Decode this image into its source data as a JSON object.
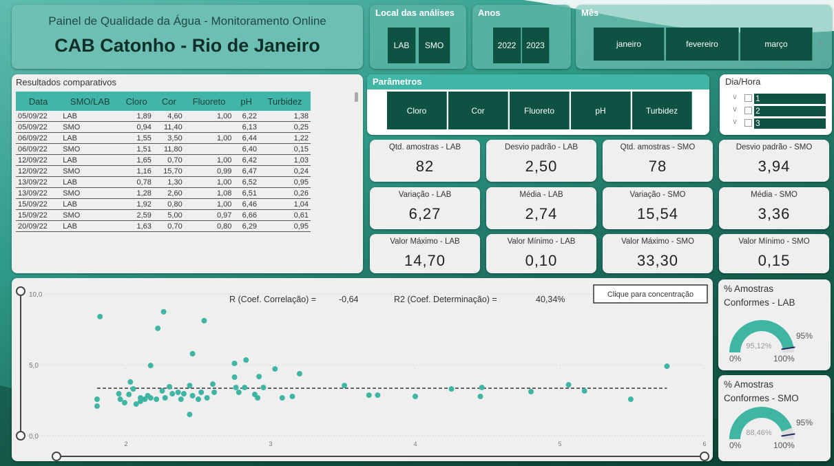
{
  "header": {
    "subtitle": "Painel de Qualidade da Água - Monitoramento Online",
    "title": "CAB Catonho - Rio de Janeiro"
  },
  "filters": {
    "local": {
      "title": "Local das análises",
      "options": [
        "LAB",
        "SMO"
      ]
    },
    "anos": {
      "title": "Anos",
      "options": [
        "2022",
        "2023"
      ]
    },
    "mes": {
      "title": "Mês",
      "options": [
        "janeiro",
        "fevereiro",
        "março"
      ]
    }
  },
  "table": {
    "title": "Resultados comparativos",
    "columns": [
      "Data",
      "SMO/LAB",
      "Cloro",
      "Cor",
      "Fluoreto",
      "pH",
      "Turbidez"
    ],
    "rows": [
      [
        "05/09/22",
        "LAB",
        "1,89",
        "4,60",
        "1,00",
        "6,22",
        "1,38"
      ],
      [
        "05/09/22",
        "SMO",
        "0,94",
        "11,40",
        null,
        "6,13",
        "0,25"
      ],
      [
        "06/09/22",
        "LAB",
        "1,55",
        "3,50",
        "1,00",
        "6,44",
        "1,22"
      ],
      [
        "06/09/22",
        "SMO",
        "1,51",
        "11,80",
        null,
        "6,40",
        "0,15"
      ],
      [
        "12/09/22",
        "LAB",
        "1,65",
        "0,70",
        "1,00",
        "6,42",
        "1,03"
      ],
      [
        "12/09/22",
        "SMO",
        "1,16",
        "15,70",
        "0,99",
        "6,47",
        "0,24"
      ],
      [
        "13/09/22",
        "LAB",
        "0,78",
        "1,30",
        "1,00",
        "6,52",
        "0,95"
      ],
      [
        "13/09/22",
        "SMO",
        "1,28",
        "2,60",
        "1,08",
        "6,51",
        "0,26"
      ],
      [
        "15/09/22",
        "LAB",
        "1,92",
        "0,80",
        "1,00",
        "6,46",
        "1,04"
      ],
      [
        "15/09/22",
        "SMO",
        "2,59",
        "5,00",
        "0,97",
        "6,66",
        "0,61"
      ],
      [
        "20/09/22",
        "LAB",
        "1,63",
        "0,70",
        "0,80",
        "6,29",
        "0,95"
      ]
    ]
  },
  "parametros": {
    "title": "Parâmetros",
    "options": [
      "Cloro",
      "Cor",
      "Fluoreto",
      "pH",
      "Turbidez"
    ]
  },
  "dia_hora": {
    "title": "Dia/Hora",
    "options": [
      "1",
      "2",
      "3"
    ]
  },
  "cards": [
    {
      "label": "Qtd. amostras - LAB",
      "value": "82"
    },
    {
      "label": "Desvio padrão - LAB",
      "value": "2,50"
    },
    {
      "label": "Qtd. amostras - SMO",
      "value": "78"
    },
    {
      "label": "Desvio padrão - SMO",
      "value": "3,94"
    },
    {
      "label": "Variação - LAB",
      "value": "6,27"
    },
    {
      "label": "Média - LAB",
      "value": "2,74"
    },
    {
      "label": "Variação - SMO",
      "value": "15,54"
    },
    {
      "label": "Média - SMO",
      "value": "3,36"
    },
    {
      "label": "Valor Máximo - LAB",
      "value": "14,70"
    },
    {
      "label": "Valor Mínimo - LAB",
      "value": "0,10"
    },
    {
      "label": "Valor Máximo - SMO",
      "value": "33,30"
    },
    {
      "label": "Valor Mínimo - SMO",
      "value": "0,15"
    }
  ],
  "chart_data": [
    {
      "type": "scatter",
      "annotations": [
        "R (Coef. Correlação) =",
        "-0,64",
        "R2 (Coef. Determinação) =",
        "40,34%"
      ],
      "button": "Clique para concentração",
      "color": "#3fb5a3",
      "x": [
        1.82,
        2.26,
        2.22,
        2.54,
        2.46,
        2.17,
        2.75,
        2.83,
        3.03,
        2.92,
        3.2,
        2.75,
        5.74,
        1.8,
        1.8,
        1.95,
        1.96,
        1.99,
        2.02,
        2.03,
        2.05,
        2.07,
        2.1,
        2.1,
        2.13,
        2.15,
        2.17,
        2.21,
        2.25,
        2.27,
        2.3,
        2.32,
        2.36,
        2.38,
        2.4,
        2.44,
        2.46,
        2.5,
        2.52,
        2.56,
        2.6,
        2.61,
        2.44,
        2.76,
        2.78,
        2.82,
        2.89,
        2.91,
        2.95,
        3.08,
        3.15,
        3.51,
        3.68,
        3.74,
        4.0,
        4.25,
        4.46,
        4.45,
        4.8,
        5.06,
        5.17,
        5.49
      ],
      "values": [
        8.4,
        8.74,
        7.57,
        8.11,
        5.78,
        4.95,
        5.1,
        5.34,
        4.71,
        4.17,
        4.37,
        4.13,
        4.9,
        2.57,
        2.09,
        2.96,
        2.57,
        2.33,
        2.91,
        3.79,
        3.3,
        2.23,
        2.43,
        2.67,
        2.57,
        2.82,
        2.67,
        2.57,
        3.16,
        2.67,
        3.45,
        2.96,
        3.06,
        2.57,
        2.96,
        3.54,
        2.82,
        2.57,
        3.06,
        2.67,
        3.64,
        3.06,
        1.5,
        3.4,
        3.06,
        3.4,
        2.91,
        2.67,
        3.4,
        2.67,
        2.77,
        3.54,
        2.86,
        2.86,
        2.77,
        3.3,
        3.4,
        2.77,
        3.11,
        3.59,
        3.16,
        2.57
      ],
      "trend_x": [
        1.8,
        5.74
      ],
      "trend_y": [
        3.35,
        3.35
      ],
      "xlim": [
        1.4,
        6
      ],
      "xticks": [
        2,
        3,
        4,
        5,
        6
      ],
      "ylim": [
        0,
        10
      ],
      "yticks": [
        {
          "value": 0,
          "label": "0,0"
        },
        {
          "value": 5,
          "label": "5,0"
        },
        {
          "value": 10,
          "label": "10,0"
        }
      ],
      "grid": true
    },
    {
      "type": "gauge",
      "title": "% Amostras Conformes - LAB",
      "value": 95.12,
      "value_label": "95,12%",
      "target": {
        "value": 95,
        "label": "95%"
      },
      "min": {
        "value": 0,
        "label": "0%"
      },
      "max": {
        "value": 100,
        "label": "100%"
      },
      "color": "#3fb5a3"
    },
    {
      "type": "gauge",
      "title": "% Amostras Conformes - SMO",
      "value": 88.46,
      "value_label": "88,46%",
      "target": {
        "value": 95,
        "label": "95%"
      },
      "min": {
        "value": 0,
        "label": "0%"
      },
      "max": {
        "value": 100,
        "label": "100%"
      },
      "color": "#3fb5a3"
    }
  ]
}
